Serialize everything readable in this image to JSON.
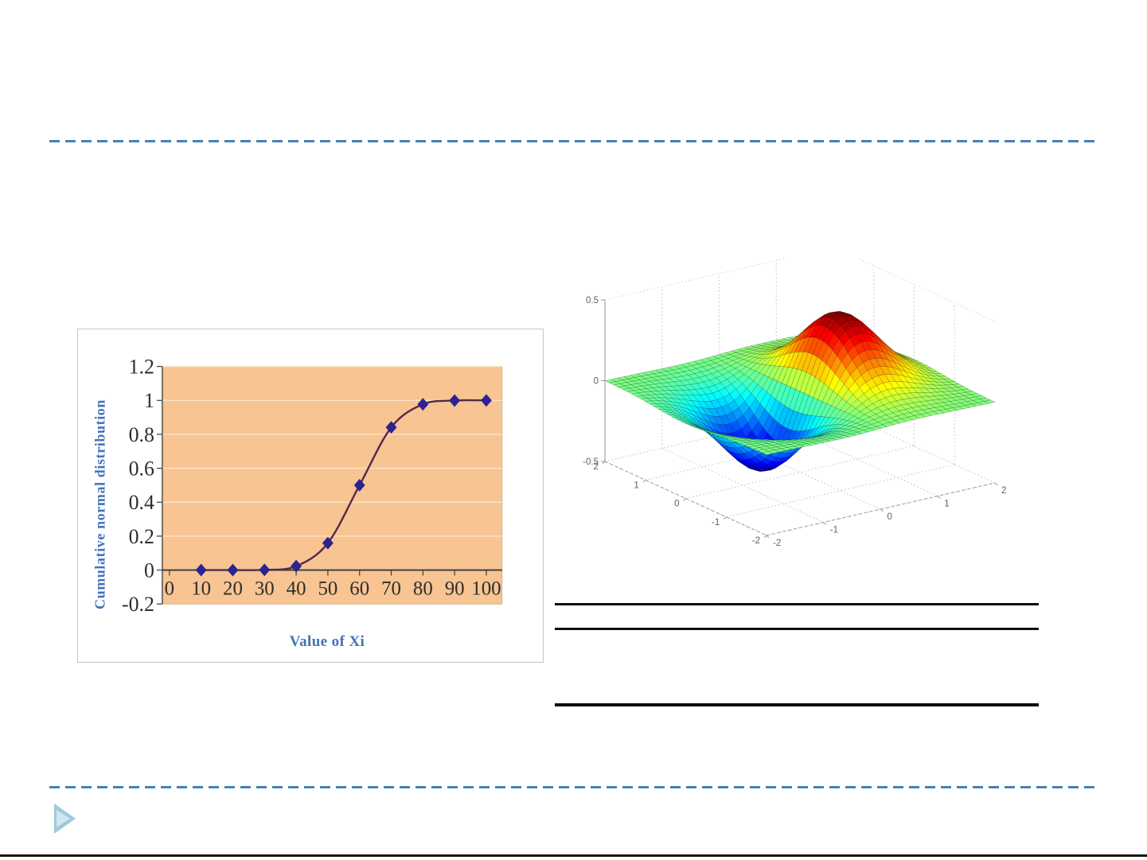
{
  "page": {
    "background": "#ffffff",
    "accent_dash_color": "#4a7ebb",
    "bottom_edge_color": "#161616",
    "triangle": {
      "outer_color": "#9fc8db",
      "inner_color": "#cfe6f0"
    }
  },
  "table_rules": {
    "color": "#0f0f0f",
    "count": 3
  },
  "chart_data": [
    {
      "type": "line",
      "name": "cumulative-normal-distribution-curve",
      "title": "",
      "xlabel": "Value of Xi",
      "ylabel": "Cumulative normal distribution",
      "x": [
        10,
        20,
        30,
        40,
        50,
        60,
        70,
        80,
        90,
        100
      ],
      "y": [
        0.0,
        0.0,
        0.001,
        0.023,
        0.159,
        0.5,
        0.841,
        0.977,
        0.999,
        1.0
      ],
      "x_ticks": [
        0,
        10,
        20,
        30,
        40,
        50,
        60,
        70,
        80,
        90,
        100
      ],
      "y_ticks": [
        -0.2,
        0,
        0.2,
        0.4,
        0.6,
        0.8,
        1,
        1.2
      ],
      "xlim": [
        0,
        105
      ],
      "ylim": [
        -0.2,
        1.2
      ],
      "grid": "horizontal",
      "legend": "none",
      "plot_bg": "#f7c492",
      "grid_color": "#fde3c6",
      "line_color": "#53294b",
      "marker": "diamond",
      "marker_color": "#2c2391",
      "axis_color": "#3a3a3a",
      "tick_label_color": "#2e2e2e",
      "axis_label_color": "#4472b8",
      "plot_border_color": "rgba(150,105,60,0.35)"
    },
    {
      "type": "surface",
      "name": "gaussian-derivative-surface",
      "formula": "z = x*exp(-x^2-y^2)",
      "x_range": [
        -2,
        2
      ],
      "y_range": [
        -2,
        2
      ],
      "z_range": [
        -0.5,
        0.5
      ],
      "x_ticks": [
        -2,
        -1,
        0,
        1,
        2
      ],
      "y_ticks": [
        -2,
        -1,
        0,
        1,
        2
      ],
      "z_ticks": [
        -0.5,
        0,
        0.5
      ],
      "z_extent": 0.4289,
      "colormap": "jet",
      "mesh_divisions": 36,
      "mesh_line_color": "rgba(0,0,0,0.45)",
      "axis_color": "#9a9a9a",
      "grid_dot_color": "#c2c2c2",
      "tick_label_color": "#5f5f5f",
      "grid": true
    }
  ]
}
